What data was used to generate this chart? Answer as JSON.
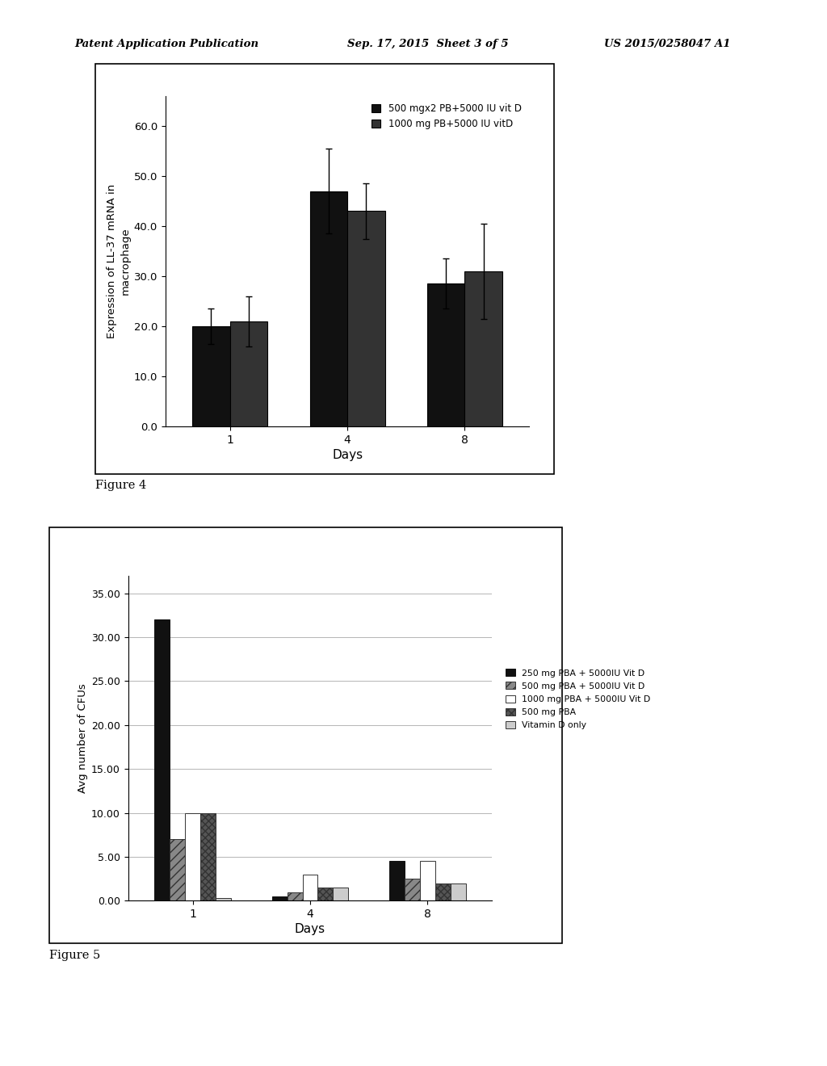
{
  "header_left": "Patent Application Publication",
  "header_mid": "Sep. 17, 2015  Sheet 3 of 5",
  "header_right": "US 2015/0258047 A1",
  "fig4_label": "Figure 4",
  "fig5_label": "Figure 5",
  "fig4": {
    "ylabel": "Expression of LL-37 mRNA in\nmacrophage",
    "xlabel": "Days",
    "days": [
      "1",
      "4",
      "8"
    ],
    "series": [
      {
        "label": "500 mgx2 PB+5000 IU vit D",
        "values": [
          20.0,
          47.0,
          28.5
        ],
        "errors": [
          3.5,
          8.5,
          5.0
        ],
        "color": "#111111"
      },
      {
        "label": "1000 mg PB+5000 IU vitD",
        "values": [
          21.0,
          43.0,
          31.0
        ],
        "errors": [
          5.0,
          5.5,
          9.5
        ],
        "color": "#333333"
      }
    ],
    "ylim": [
      0,
      66
    ],
    "yticks": [
      0.0,
      10.0,
      20.0,
      30.0,
      40.0,
      50.0,
      60.0
    ],
    "bar_width": 0.32
  },
  "fig5": {
    "ylabel": "Avg number of CFUs",
    "xlabel": "Days",
    "days": [
      "1",
      "4",
      "8"
    ],
    "series": [
      {
        "label": "250 mg PBA + 5000IU Vit D",
        "values": [
          32.0,
          0.5,
          4.5
        ],
        "color": "#111111",
        "edgecolor": "#111111",
        "hatch": ""
      },
      {
        "label": "500 mg PBA + 5000IU Vit D",
        "values": [
          7.0,
          1.0,
          2.5
        ],
        "color": "#888888",
        "edgecolor": "#333333",
        "hatch": "///"
      },
      {
        "label": "1000 mg PBA + 5000IU Vit D",
        "values": [
          10.0,
          3.0,
          4.5
        ],
        "color": "#ffffff",
        "edgecolor": "#333333",
        "hatch": ""
      },
      {
        "label": "500 mg PBA",
        "values": [
          10.0,
          1.5,
          2.0
        ],
        "color": "#555555",
        "edgecolor": "#333333",
        "hatch": "xxxx"
      },
      {
        "label": "Vitamin D only",
        "values": [
          0.3,
          1.5,
          2.0
        ],
        "color": "#cccccc",
        "edgecolor": "#333333",
        "hatch": ""
      }
    ],
    "ylim": [
      0,
      37
    ],
    "yticks": [
      0.0,
      5.0,
      10.0,
      15.0,
      20.0,
      25.0,
      30.0,
      35.0
    ],
    "bar_width": 0.13
  },
  "background_color": "#ffffff",
  "text_color": "#000000"
}
